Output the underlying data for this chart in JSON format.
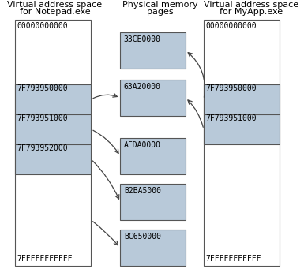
{
  "title_left_line1": "Virtual address space",
  "title_left_line2": "for Notepad.exe",
  "title_center_line1": "Physical memory",
  "title_center_line2": "pages",
  "title_right_line1": "Virtual address space",
  "title_right_line2": "for MyApp.exe",
  "notepad_labels": [
    "00000000000",
    "7F793950000",
    "7F793951000",
    "7F793952000",
    "7FFFFFFFFFFF"
  ],
  "myapp_labels": [
    "00000000000",
    "7F793950000",
    "7F793951000",
    "7FFFFFFFFFFF"
  ],
  "phys_labels": [
    "33CE0000",
    "63A20000",
    "AFDA0000",
    "B2BA5000",
    "BC650000"
  ],
  "box_fill_blue": "#b8c9d9",
  "box_fill_white": "#ffffff",
  "box_edge": "#555555",
  "arrow_color": "#444444",
  "text_color": "#000000",
  "font_size": 7.0,
  "title_font_size": 8.0
}
